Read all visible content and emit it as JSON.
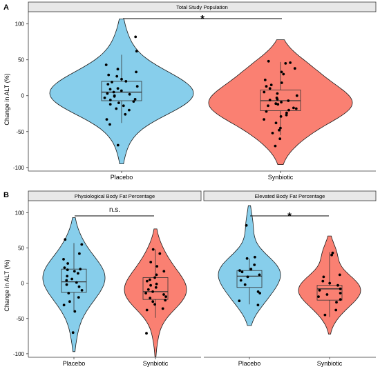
{
  "chart_data": [
    {
      "type": "violin",
      "panel": "A",
      "strip_title": "Total Study Population",
      "ylabel": "Change in ALT (%)",
      "ylim": [
        -105,
        117
      ],
      "yticks": [
        -100,
        -50,
        0,
        50,
        100
      ],
      "categories": [
        "Placebo",
        "Synbiotic"
      ],
      "colors": [
        "#87CEEB",
        "#FA8072"
      ],
      "significance": "*",
      "groups": [
        {
          "name": "Placebo",
          "violin_range": [
            -95,
            107
          ],
          "box": {
            "q1": -7,
            "median": 5,
            "q3": 20,
            "whisker_low": -38,
            "whisker_high": 57
          },
          "points": [
            82,
            62,
            43,
            37,
            33,
            29,
            27,
            23,
            20,
            19,
            16,
            13,
            10,
            9,
            7,
            5,
            3,
            2,
            0,
            -1,
            -3,
            -5,
            -6,
            -8,
            -10,
            -12,
            -14,
            -18,
            -20,
            -26,
            -33,
            -40,
            -69
          ]
        },
        {
          "name": "Synbiotic",
          "violin_range": [
            -96,
            78
          ],
          "box": {
            "q1": -21,
            "median": -7,
            "q3": 8,
            "whisker_low": -55,
            "whisker_high": 47
          },
          "points": [
            48,
            46,
            45,
            38,
            33,
            30,
            22,
            18,
            15,
            13,
            10,
            5,
            3,
            0,
            -3,
            -5,
            -6,
            -7,
            -9,
            -11,
            -12,
            -14,
            -17,
            -18,
            -20,
            -22,
            -24,
            -27,
            -29,
            -33,
            -38,
            -45,
            -48,
            -52,
            -60,
            -70
          ]
        }
      ]
    },
    {
      "type": "violin",
      "panel": "B",
      "strip_title": "Physiological Body Fat Percentage",
      "ylabel": "Change in ALT (%)",
      "ylim": [
        -105,
        117
      ],
      "yticks": [
        -100,
        -50,
        0,
        50,
        100
      ],
      "categories": [
        "Placebo",
        "Synbiotic"
      ],
      "colors": [
        "#87CEEB",
        "#FA8072"
      ],
      "significance": "n.s.",
      "groups": [
        {
          "name": "Placebo",
          "violin_range": [
            -97,
            93
          ],
          "box": {
            "q1": -13,
            "median": 2,
            "q3": 20,
            "whisker_low": -40,
            "whisker_high": 57
          },
          "points": [
            62,
            55,
            42,
            34,
            28,
            22,
            20,
            19,
            17,
            14,
            10,
            6,
            4,
            1,
            -2,
            -5,
            -10,
            -14,
            -20,
            -26,
            -31,
            -40,
            -70
          ]
        },
        {
          "name": "Synbiotic",
          "violin_range": [
            -104,
            77
          ],
          "box": {
            "q1": -23,
            "median": -12,
            "q3": 8,
            "whisker_low": -49,
            "whisker_high": 48
          },
          "points": [
            48,
            42,
            30,
            24,
            17,
            12,
            8,
            5,
            3,
            -1,
            -3,
            -6,
            -9,
            -12,
            -14,
            -16,
            -19,
            -21,
            -24,
            -26,
            -30,
            -36,
            -38,
            -71
          ]
        }
      ]
    },
    {
      "type": "violin",
      "panel": "B",
      "strip_title": "Elevated Body Fat Percentage",
      "ylabel": "",
      "ylim": [
        -105,
        117
      ],
      "yticks": [
        -100,
        -50,
        0,
        50,
        100
      ],
      "categories": [
        "Placebo",
        "Synbiotic"
      ],
      "colors": [
        "#87CEEB",
        "#FA8072"
      ],
      "significance": "*",
      "groups": [
        {
          "name": "Placebo",
          "violin_range": [
            -60,
            110
          ],
          "box": {
            "q1": -6,
            "median": 10,
            "q3": 18,
            "whisker_low": -30,
            "whisker_high": 35
          },
          "points": [
            82,
            37,
            35,
            26,
            20,
            18,
            16,
            12,
            9,
            4,
            -2,
            -12,
            -14,
            -25,
            -31
          ]
        },
        {
          "name": "Synbiotic",
          "violin_range": [
            -72,
            67
          ],
          "box": {
            "q1": -24,
            "median": -8,
            "q3": -3,
            "whisker_low": -48,
            "whisker_high": 44
          },
          "points": [
            43,
            40,
            12,
            9,
            3,
            0,
            -3,
            -8,
            -10,
            -14,
            -16,
            -19,
            -23,
            -27,
            -38,
            -45
          ]
        }
      ]
    }
  ]
}
